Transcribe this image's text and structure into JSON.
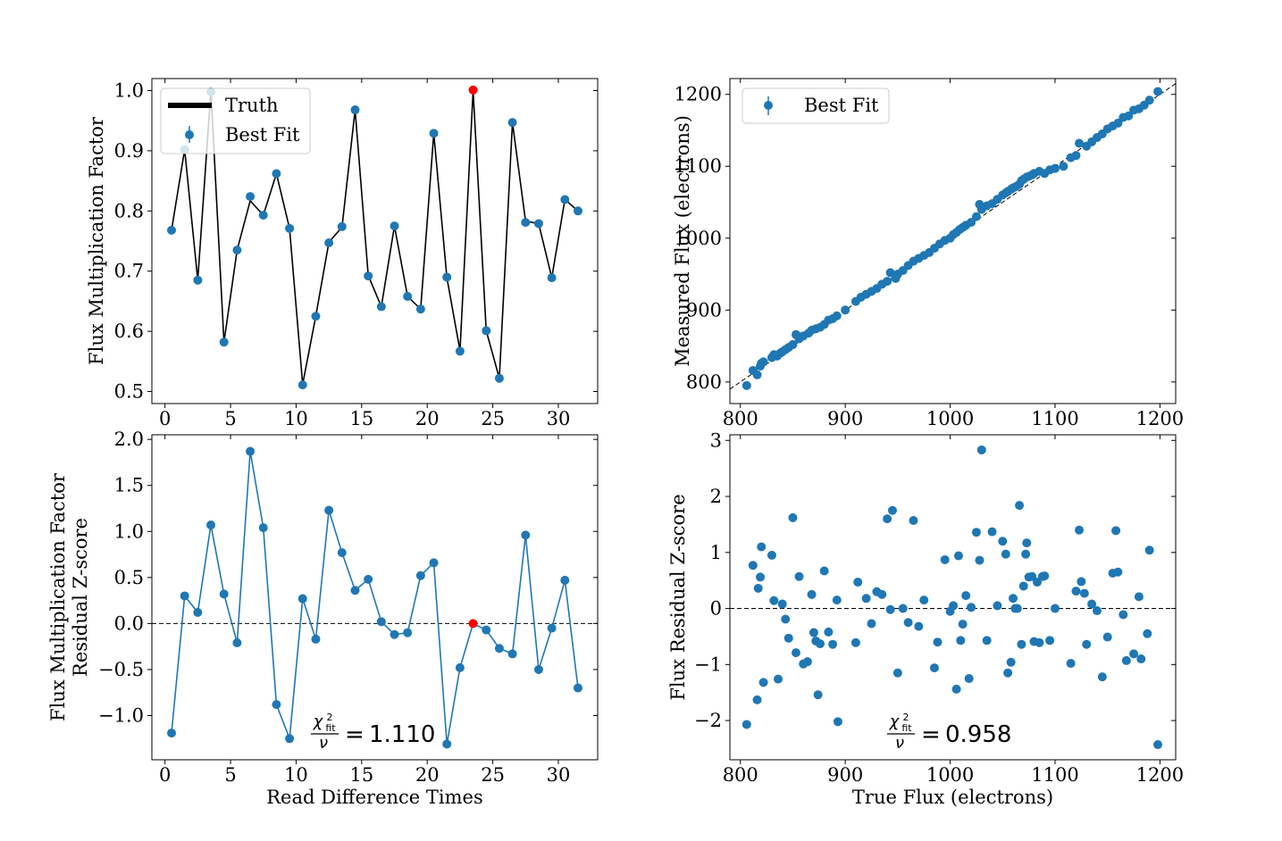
{
  "colors": {
    "series": "#1f77b4",
    "highlight": "#ff0000",
    "truth": "#000000"
  },
  "chart_data": [
    {
      "id": "top-left",
      "type": "line",
      "title": "",
      "xlabel": "",
      "ylabel": "Flux Multiplication Factor",
      "xlim": [
        -1,
        33
      ],
      "ylim": [
        0.48,
        1.02
      ],
      "xticks": [
        0,
        5,
        10,
        15,
        20,
        25,
        30
      ],
      "xtick_labels": [
        "0",
        "5",
        "10",
        "15",
        "20",
        "25",
        "30"
      ],
      "yticks": [
        0.5,
        0.6,
        0.7,
        0.8,
        0.9,
        1.0
      ],
      "ytick_labels": [
        "0.5",
        "0.6",
        "0.7",
        "0.8",
        "0.9",
        "1.0"
      ],
      "legend": {
        "position": "top-left",
        "entries": [
          "Truth",
          "Best Fit"
        ]
      },
      "highlight_index": 23,
      "x": [
        0.5,
        1.5,
        2.5,
        3.5,
        4.5,
        5.5,
        6.5,
        7.5,
        8.5,
        9.5,
        10.5,
        11.5,
        12.5,
        13.5,
        14.5,
        15.5,
        16.5,
        17.5,
        18.5,
        19.5,
        20.5,
        21.5,
        22.5,
        23.5,
        24.5,
        25.5,
        26.5,
        27.5,
        28.5,
        29.5,
        30.5,
        31.5
      ],
      "series": [
        {
          "name": "Truth",
          "values": [
            0.768,
            0.902,
            0.685,
            1.0,
            0.582,
            0.735,
            0.817,
            0.793,
            0.862,
            0.771,
            0.512,
            0.625,
            0.748,
            0.773,
            0.968,
            0.693,
            0.641,
            0.775,
            0.658,
            0.637,
            0.929,
            0.689,
            0.568,
            1.0,
            0.601,
            0.522,
            0.947,
            0.783,
            0.779,
            0.689,
            0.819,
            0.8
          ]
        },
        {
          "name": "Best Fit",
          "values": [
            0.768,
            0.902,
            0.685,
            0.998,
            0.582,
            0.735,
            0.824,
            0.793,
            0.862,
            0.771,
            0.511,
            0.625,
            0.747,
            0.774,
            0.968,
            0.692,
            0.641,
            0.775,
            0.658,
            0.637,
            0.929,
            0.69,
            0.567,
            1.001,
            0.601,
            0.522,
            0.947,
            0.781,
            0.779,
            0.689,
            0.819,
            0.8
          ]
        }
      ]
    },
    {
      "id": "top-right",
      "type": "scatter",
      "title": "",
      "xlabel": "",
      "ylabel": "Measured Flux (electrons)",
      "xlim": [
        790,
        1215
      ],
      "ylim": [
        770,
        1222
      ],
      "xticks": [
        800,
        900,
        1000,
        1100,
        1200
      ],
      "xtick_labels": [
        "800",
        "900",
        "1000",
        "1100",
        "1200"
      ],
      "yticks": [
        800,
        900,
        1000,
        1100,
        1200
      ],
      "ytick_labels": [
        "800",
        "900",
        "1000",
        "1100",
        "1200"
      ],
      "legend": {
        "position": "top-left",
        "entries": [
          "Best Fit"
        ]
      },
      "reference_line": "y = x",
      "series": [
        {
          "name": "Best Fit",
          "x": [
            806,
            812,
            816,
            819,
            820,
            822,
            830,
            832,
            835,
            838,
            840,
            843,
            846,
            850,
            853,
            856,
            860,
            865,
            868,
            872,
            876,
            880,
            884,
            888,
            892,
            900,
            910,
            915,
            920,
            925,
            930,
            935,
            940,
            943,
            948,
            950,
            955,
            960,
            965,
            970,
            975,
            980,
            985,
            990,
            995,
            1000,
            1003,
            1006,
            1009,
            1012,
            1015,
            1020,
            1025,
            1028,
            1030,
            1035,
            1040,
            1045,
            1050,
            1053,
            1055,
            1058,
            1060,
            1063,
            1066,
            1068,
            1070,
            1073,
            1075,
            1078,
            1080,
            1085,
            1090,
            1095,
            1100,
            1108,
            1115,
            1120,
            1123,
            1130,
            1135,
            1140,
            1145,
            1150,
            1155,
            1160,
            1165,
            1170,
            1175,
            1180,
            1185,
            1190,
            1198
          ],
          "y": [
            795,
            816,
            810,
            822,
            826,
            828,
            834,
            838,
            836,
            840,
            842,
            845,
            848,
            852,
            866,
            860,
            864,
            868,
            872,
            874,
            876,
            880,
            886,
            888,
            892,
            900,
            912,
            918,
            922,
            926,
            930,
            936,
            940,
            952,
            944,
            950,
            955,
            962,
            968,
            972,
            976,
            980,
            986,
            992,
            997,
            1000,
            1005,
            1008,
            1012,
            1015,
            1018,
            1022,
            1030,
            1047,
            1040,
            1045,
            1048,
            1054,
            1060,
            1063,
            1065,
            1068,
            1070,
            1072,
            1075,
            1080,
            1082,
            1085,
            1086,
            1088,
            1090,
            1093,
            1090,
            1095,
            1097,
            1100,
            1112,
            1115,
            1132,
            1128,
            1134,
            1140,
            1145,
            1152,
            1156,
            1160,
            1168,
            1170,
            1178,
            1180,
            1185,
            1192,
            1204
          ]
        }
      ]
    },
    {
      "id": "bottom-left",
      "type": "line",
      "title": "",
      "xlabel": "Read Difference Times",
      "ylabel": "Flux Multiplication Factor\nResidual Z-score",
      "xlim": [
        -1,
        33
      ],
      "ylim": [
        -1.48,
        2.05
      ],
      "xticks": [
        0,
        5,
        10,
        15,
        20,
        25,
        30
      ],
      "xtick_labels": [
        "0",
        "5",
        "10",
        "15",
        "20",
        "25",
        "30"
      ],
      "yticks": [
        -1.0,
        -0.5,
        0.0,
        0.5,
        1.0,
        1.5,
        2.0
      ],
      "ytick_labels": [
        "−1.0",
        "−0.5",
        "0.0",
        "0.5",
        "1.0",
        "1.5",
        "2.0"
      ],
      "reference_line": "y = 0",
      "highlight_index": 23,
      "annotation": {
        "chi_symbol": "χ",
        "chi_sup": "2",
        "chi_sub": "fit",
        "denominator": "ν",
        "equals": "=",
        "value": "1.110"
      },
      "x": [
        0.5,
        1.5,
        2.5,
        3.5,
        4.5,
        5.5,
        6.5,
        7.5,
        8.5,
        9.5,
        10.5,
        11.5,
        12.5,
        13.5,
        14.5,
        15.5,
        16.5,
        17.5,
        18.5,
        19.5,
        20.5,
        21.5,
        22.5,
        23.5,
        24.5,
        25.5,
        26.5,
        27.5,
        28.5,
        29.5,
        30.5,
        31.5
      ],
      "series": [
        {
          "name": "Residual",
          "values": [
            -1.19,
            0.3,
            0.12,
            1.07,
            0.32,
            -0.21,
            1.87,
            1.04,
            -0.88,
            -1.25,
            0.27,
            -0.17,
            1.23,
            0.77,
            0.36,
            0.48,
            0.02,
            -0.12,
            -0.1,
            0.52,
            0.66,
            -1.31,
            -0.48,
            0.0,
            -0.07,
            -0.27,
            -0.33,
            0.96,
            -0.5,
            -0.05,
            0.47,
            -0.7
          ]
        }
      ]
    },
    {
      "id": "bottom-right",
      "type": "scatter",
      "title": "",
      "xlabel": "True Flux (electrons)",
      "ylabel": "Flux Residual Z-score",
      "xlim": [
        790,
        1215
      ],
      "ylim": [
        -2.7,
        3.1
      ],
      "xticks": [
        800,
        900,
        1000,
        1100,
        1200
      ],
      "xtick_labels": [
        "800",
        "900",
        "1000",
        "1100",
        "1200"
      ],
      "yticks": [
        -2,
        -1,
        0,
        1,
        2,
        3
      ],
      "ytick_labels": [
        "−2",
        "−1",
        "0",
        "1",
        "2",
        "3"
      ],
      "reference_line": "y = 0",
      "annotation": {
        "chi_symbol": "χ",
        "chi_sup": "2",
        "chi_sub": "fit",
        "denominator": "ν",
        "equals": "=",
        "value": "0.958"
      },
      "series": [
        {
          "name": "Residual",
          "x": [
            806,
            812,
            816,
            817,
            819,
            820,
            822,
            830,
            832,
            836,
            840,
            843,
            846,
            850,
            853,
            856,
            860,
            864,
            868,
            870,
            872,
            874,
            876,
            880,
            884,
            888,
            892,
            893,
            910,
            912,
            920,
            925,
            930,
            935,
            940,
            943,
            945,
            950,
            955,
            960,
            965,
            970,
            975,
            985,
            988,
            995,
            1000,
            1003,
            1006,
            1008,
            1010,
            1012,
            1015,
            1018,
            1020,
            1025,
            1028,
            1030,
            1035,
            1040,
            1045,
            1050,
            1053,
            1055,
            1058,
            1060,
            1062,
            1064,
            1066,
            1068,
            1070,
            1072,
            1073,
            1075,
            1078,
            1080,
            1083,
            1085,
            1088,
            1090,
            1095,
            1100,
            1115,
            1120,
            1123,
            1125,
            1128,
            1130,
            1135,
            1140,
            1145,
            1150,
            1155,
            1158,
            1160,
            1165,
            1168,
            1175,
            1180,
            1182,
            1188,
            1190,
            1198
          ],
          "y": [
            -2.07,
            0.77,
            -1.63,
            0.36,
            0.56,
            1.1,
            -1.32,
            0.95,
            0.14,
            -1.26,
            0.08,
            -0.19,
            -0.53,
            1.62,
            -0.79,
            0.57,
            -0.99,
            -0.95,
            0.25,
            -0.43,
            -0.58,
            -1.54,
            -0.63,
            0.67,
            -0.42,
            -0.64,
            0.15,
            -2.02,
            -0.61,
            0.47,
            0.18,
            -0.27,
            0.3,
            0.25,
            1.6,
            -0.02,
            1.75,
            -1.15,
            0.0,
            -0.25,
            1.57,
            -0.32,
            0.15,
            -1.06,
            -0.6,
            0.87,
            -0.05,
            0.05,
            -1.44,
            0.94,
            -0.57,
            -0.28,
            0.23,
            -1.25,
            0.02,
            1.36,
            0.86,
            2.83,
            -0.57,
            1.37,
            0.05,
            1.2,
            0.97,
            -1.15,
            -0.96,
            0.18,
            0.0,
            0.0,
            1.84,
            -0.64,
            0.4,
            0.97,
            1.17,
            0.56,
            0.57,
            -0.59,
            0.47,
            -0.61,
            0.57,
            0.58,
            -0.57,
            0.0,
            -0.98,
            0.31,
            1.4,
            0.48,
            0.27,
            -0.64,
            0.08,
            -0.04,
            -1.22,
            -0.51,
            0.63,
            1.39,
            0.65,
            -0.11,
            -0.93,
            -0.81,
            0.21,
            -0.9,
            -0.45,
            1.04,
            -2.43
          ]
        }
      ]
    }
  ]
}
